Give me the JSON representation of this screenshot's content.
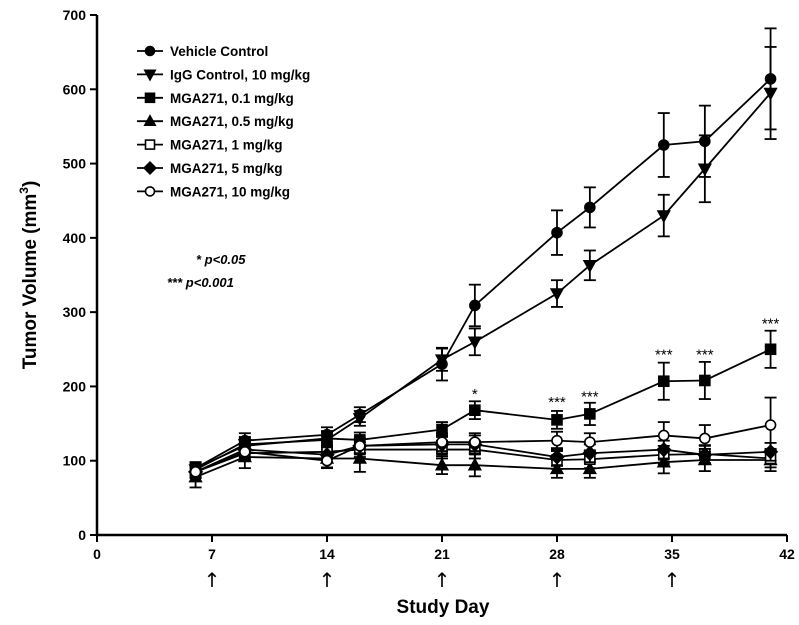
{
  "chart_data": {
    "type": "line",
    "xlabel": "Study Day",
    "ylabel": "Tumor Volume (mm",
    "ylabel_superscript": "3",
    "ylabel_close": ")",
    "xlim": [
      0,
      42
    ],
    "ylim": [
      0,
      700
    ],
    "xticks": [
      0,
      7,
      14,
      21,
      28,
      35,
      42
    ],
    "yticks": [
      0,
      100,
      200,
      300,
      400,
      500,
      600,
      700
    ],
    "legend_position": "top-left",
    "dosing_days": [
      7,
      14,
      21,
      28,
      35
    ],
    "dosing_marker": "↑",
    "significance_notes": [
      "*  p<0.05",
      "*** p<0.001"
    ],
    "annotations": [
      {
        "x": 23,
        "y": 183,
        "text": "*"
      },
      {
        "x": 28,
        "y": 172,
        "text": "***"
      },
      {
        "x": 30,
        "y": 180,
        "text": "***"
      },
      {
        "x": 34.5,
        "y": 236,
        "text": "***"
      },
      {
        "x": 37,
        "y": 236,
        "text": "***"
      },
      {
        "x": 41,
        "y": 278,
        "text": "***"
      }
    ],
    "series": [
      {
        "name": "Vehicle Control",
        "marker": "circle-filled",
        "x": [
          6,
          9,
          14,
          16,
          21,
          23,
          28,
          30,
          34.5,
          37,
          41
        ],
        "y": [
          90,
          127,
          135,
          162,
          230,
          309,
          407,
          441,
          525,
          530,
          614
        ],
        "err": [
          8,
          10,
          10,
          10,
          22,
          28,
          30,
          27,
          43,
          48,
          68
        ]
      },
      {
        "name": "IgG Control, 10 mg/kg",
        "marker": "triangle-down-filled",
        "x": [
          6,
          9,
          14,
          16,
          21,
          23,
          28,
          30,
          34.5,
          37,
          41
        ],
        "y": [
          88,
          122,
          128,
          157,
          236,
          260,
          325,
          363,
          430,
          493,
          595
        ],
        "err": [
          8,
          10,
          10,
          10,
          15,
          18,
          18,
          20,
          28,
          45,
          62
        ]
      },
      {
        "name": "MGA271, 0.1 mg/kg",
        "marker": "square-filled",
        "x": [
          6,
          9,
          14,
          16,
          21,
          23,
          28,
          30,
          34.5,
          37,
          41
        ],
        "y": [
          90,
          120,
          130,
          128,
          142,
          168,
          155,
          163,
          207,
          208,
          250
        ],
        "err": [
          8,
          10,
          10,
          10,
          10,
          12,
          12,
          15,
          25,
          25,
          25
        ]
      },
      {
        "name": "MGA271, 0.5 mg/kg",
        "marker": "triangle-up-filled",
        "x": [
          6,
          9,
          14,
          16,
          21,
          23,
          28,
          30,
          34.5,
          37,
          41
        ],
        "y": [
          78,
          105,
          103,
          103,
          94,
          94,
          89,
          89,
          98,
          101,
          101
        ],
        "err": [
          14,
          15,
          12,
          18,
          12,
          15,
          12,
          12,
          15,
          15,
          15
        ]
      },
      {
        "name": "MGA271, 1 mg/kg",
        "marker": "square-open",
        "x": [
          6,
          9,
          14,
          16,
          21,
          23,
          28,
          30,
          34.5,
          37,
          41
        ],
        "y": [
          85,
          110,
          112,
          115,
          115,
          115,
          101,
          102,
          108,
          109,
          103
        ],
        "err": [
          8,
          10,
          10,
          10,
          12,
          12,
          12,
          12,
          12,
          12,
          12
        ]
      },
      {
        "name": "MGA271, 5 mg/kg",
        "marker": "diamond-filled",
        "x": [
          6,
          9,
          14,
          16,
          21,
          23,
          28,
          30,
          34.5,
          37,
          41
        ],
        "y": [
          85,
          115,
          108,
          120,
          122,
          122,
          105,
          110,
          115,
          108,
          112
        ],
        "err": [
          8,
          10,
          10,
          10,
          12,
          12,
          12,
          12,
          12,
          12,
          12
        ]
      },
      {
        "name": "MGA271, 10 mg/kg",
        "marker": "circle-open",
        "x": [
          6,
          9,
          14,
          16,
          21,
          23,
          28,
          30,
          34.5,
          37,
          41
        ],
        "y": [
          85,
          112,
          100,
          120,
          125,
          125,
          127,
          125,
          134,
          130,
          148
        ],
        "err": [
          8,
          10,
          10,
          10,
          12,
          12,
          12,
          12,
          18,
          18,
          37
        ]
      }
    ]
  }
}
